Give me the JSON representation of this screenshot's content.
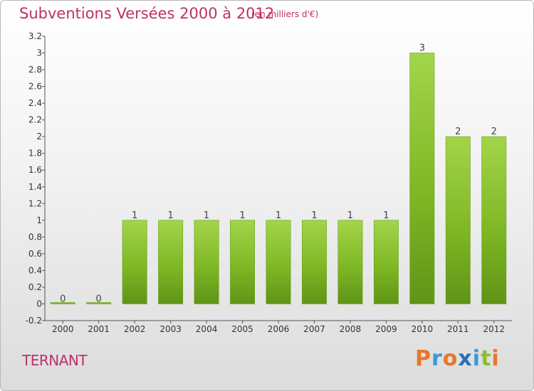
{
  "header": {
    "title": "Subventions Versées 2000 à 2012",
    "unit": "(en milliers d'€)"
  },
  "footer": {
    "commune": "TERNANT",
    "logo": "Proxiti",
    "logo_colors": [
      "#e8762a",
      "#3a9ad9",
      "#e8762a",
      "#2a6fb8",
      "#3a9ad9",
      "#8bbf2a",
      "#e8762a"
    ]
  },
  "chart_data": {
    "type": "bar",
    "title": "Subventions Versées 2000 à 2012",
    "subtitle": "(en milliers d'€)",
    "xlabel": "",
    "ylabel": "",
    "categories": [
      "2000",
      "2001",
      "2002",
      "2003",
      "2004",
      "2005",
      "2006",
      "2007",
      "2008",
      "2009",
      "2010",
      "2011",
      "2012"
    ],
    "values": [
      0,
      0,
      1,
      1,
      1,
      1,
      1,
      1,
      1,
      1,
      3,
      2,
      2
    ],
    "data_labels": [
      "0",
      "0",
      "1",
      "1",
      "1",
      "1",
      "1",
      "1",
      "1",
      "1",
      "3",
      "2",
      "2"
    ],
    "ylim": [
      -0.2,
      3.2
    ],
    "yticks": [
      -0.2,
      0,
      0.2,
      0.4,
      0.6,
      0.8,
      1,
      1.2,
      1.4,
      1.6,
      1.8,
      2,
      2.2,
      2.4,
      2.6,
      2.8,
      3,
      3.2
    ],
    "ytick_labels": [
      "-0.2",
      "0",
      "0.2",
      "0.4",
      "0.6",
      "0.8",
      "1",
      "1.2",
      "1.4",
      "1.6",
      "1.8",
      "2",
      "2.2",
      "2.4",
      "2.6",
      "2.8",
      "3",
      "3.2"
    ],
    "bar_color": "#7fb825",
    "bar_color_light": "#a3d54a",
    "bar_color_dark": "#5f9417",
    "grid": false
  }
}
